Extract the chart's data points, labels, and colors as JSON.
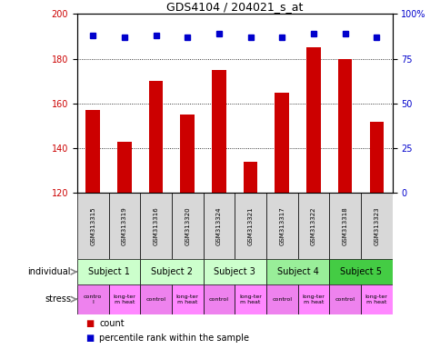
{
  "title": "GDS4104 / 204021_s_at",
  "samples": [
    "GSM313315",
    "GSM313319",
    "GSM313316",
    "GSM313320",
    "GSM313324",
    "GSM313321",
    "GSM313317",
    "GSM313322",
    "GSM313318",
    "GSM313323"
  ],
  "counts": [
    157,
    143,
    170,
    155,
    175,
    134,
    165,
    185,
    180,
    152
  ],
  "percentile_ranks": [
    88,
    87,
    88,
    87,
    89,
    87,
    87,
    89,
    89,
    87
  ],
  "ylim_left": [
    120,
    200
  ],
  "ylim_right": [
    0,
    100
  ],
  "yticks_left": [
    120,
    140,
    160,
    180,
    200
  ],
  "yticks_right": [
    0,
    25,
    50,
    75,
    100
  ],
  "subjects": [
    {
      "label": "Subject 1",
      "start": 0,
      "end": 2,
      "color": "#ccffcc"
    },
    {
      "label": "Subject 2",
      "start": 2,
      "end": 4,
      "color": "#ccffcc"
    },
    {
      "label": "Subject 3",
      "start": 4,
      "end": 6,
      "color": "#ccffcc"
    },
    {
      "label": "Subject 4",
      "start": 6,
      "end": 8,
      "color": "#99ee99"
    },
    {
      "label": "Subject 5",
      "start": 8,
      "end": 10,
      "color": "#44cc44"
    }
  ],
  "stress_labels_line1": [
    "contro",
    "long-ter",
    "control",
    "long-ter",
    "control",
    "long-ter",
    "control",
    "long-ter",
    "control",
    "long-ter"
  ],
  "stress_labels_line2": [
    "l",
    "m heat",
    "",
    "m heat",
    "",
    "m heat",
    "",
    "m heat",
    "",
    "m heat"
  ],
  "stress_colors": [
    "#ee82ee",
    "#ff88ff",
    "#ee82ee",
    "#ff88ff",
    "#ee82ee",
    "#ff88ff",
    "#ee82ee",
    "#ff88ff",
    "#ee82ee",
    "#ff88ff"
  ],
  "control_color": "#ee82ee",
  "heat_color": "#ff88ff",
  "bar_color": "#cc0000",
  "dot_color": "#0000cc",
  "tick_label_color_left": "#cc0000",
  "tick_label_color_right": "#0000cc",
  "gsm_bg_color": "#d8d8d8",
  "individual_label": "individual",
  "stress_label": "stress",
  "legend_count_color": "#cc0000",
  "legend_pct_color": "#0000cc"
}
